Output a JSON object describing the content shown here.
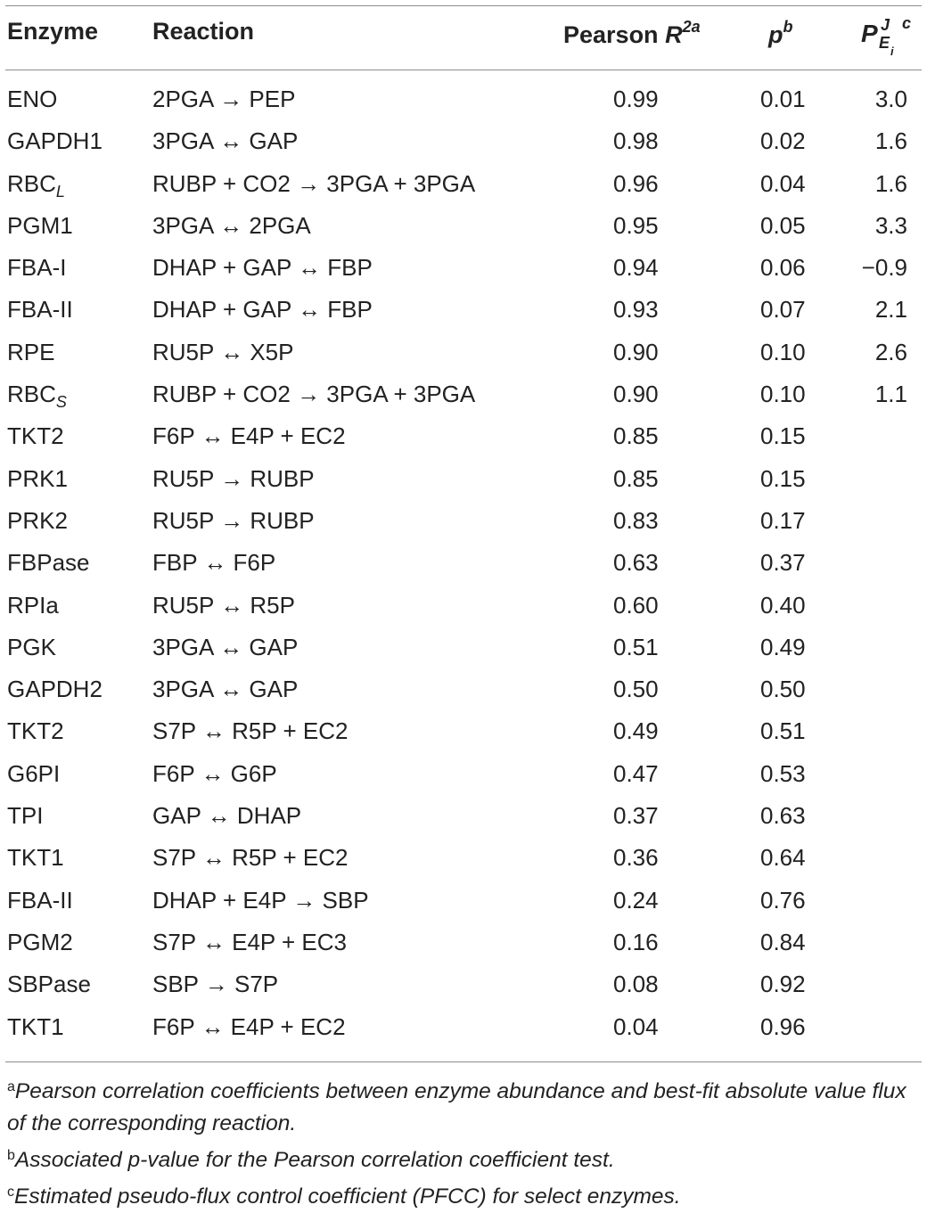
{
  "table": {
    "headers": {
      "enzyme": "Enzyme",
      "reaction": "Reaction",
      "pearson": "Pearson ",
      "pearson_var": "R",
      "pearson_sup": "2a",
      "p": "p",
      "p_sup": "b",
      "pfcc_P": "P",
      "pfcc_J": "J",
      "pfcc_E": "E",
      "pfcc_i": "i",
      "pfcc_c": "c"
    },
    "rows": [
      {
        "enzyme": "ENO",
        "enzyme_sub": "",
        "reaction": "2PGA → PEP",
        "pearson": "0.99",
        "p": "0.01",
        "pfcc": "3.0"
      },
      {
        "enzyme": "GAPDH1",
        "enzyme_sub": "",
        "reaction": "3PGA ↔ GAP",
        "pearson": "0.98",
        "p": "0.02",
        "pfcc": "1.6"
      },
      {
        "enzyme": "RBC",
        "enzyme_sub": "L",
        "reaction": "RUBP + CO2 → 3PGA + 3PGA",
        "pearson": "0.96",
        "p": "0.04",
        "pfcc": "1.6"
      },
      {
        "enzyme": "PGM1",
        "enzyme_sub": "",
        "reaction": "3PGA ↔ 2PGA",
        "pearson": "0.95",
        "p": "0.05",
        "pfcc": "3.3"
      },
      {
        "enzyme": "FBA-I",
        "enzyme_sub": "",
        "reaction": "DHAP + GAP ↔ FBP",
        "pearson": "0.94",
        "p": "0.06",
        "pfcc": "−0.9"
      },
      {
        "enzyme": "FBA-II",
        "enzyme_sub": "",
        "reaction": "DHAP + GAP ↔ FBP",
        "pearson": "0.93",
        "p": "0.07",
        "pfcc": "2.1"
      },
      {
        "enzyme": "RPE",
        "enzyme_sub": "",
        "reaction": "RU5P ↔ X5P",
        "pearson": "0.90",
        "p": "0.10",
        "pfcc": "2.6"
      },
      {
        "enzyme": "RBC",
        "enzyme_sub": "S",
        "reaction": "RUBP + CO2 → 3PGA + 3PGA",
        "pearson": "0.90",
        "p": "0.10",
        "pfcc": "1.1"
      },
      {
        "enzyme": "TKT2",
        "enzyme_sub": "",
        "reaction": "F6P ↔ E4P + EC2",
        "pearson": "0.85",
        "p": "0.15",
        "pfcc": ""
      },
      {
        "enzyme": "PRK1",
        "enzyme_sub": "",
        "reaction": "RU5P → RUBP",
        "pearson": "0.85",
        "p": "0.15",
        "pfcc": ""
      },
      {
        "enzyme": "PRK2",
        "enzyme_sub": "",
        "reaction": "RU5P → RUBP",
        "pearson": "0.83",
        "p": "0.17",
        "pfcc": ""
      },
      {
        "enzyme": "FBPase",
        "enzyme_sub": "",
        "reaction": "FBP ↔ F6P",
        "pearson": "0.63",
        "p": "0.37",
        "pfcc": ""
      },
      {
        "enzyme": "RPIa",
        "enzyme_sub": "",
        "reaction": "RU5P ↔ R5P",
        "pearson": "0.60",
        "p": "0.40",
        "pfcc": ""
      },
      {
        "enzyme": "PGK",
        "enzyme_sub": "",
        "reaction": "3PGA ↔ GAP",
        "pearson": "0.51",
        "p": "0.49",
        "pfcc": ""
      },
      {
        "enzyme": "GAPDH2",
        "enzyme_sub": "",
        "reaction": "3PGA ↔ GAP",
        "pearson": "0.50",
        "p": "0.50",
        "pfcc": ""
      },
      {
        "enzyme": "TKT2",
        "enzyme_sub": "",
        "reaction": "S7P ↔ R5P + EC2",
        "pearson": "0.49",
        "p": "0.51",
        "pfcc": ""
      },
      {
        "enzyme": "G6PI",
        "enzyme_sub": "",
        "reaction": "F6P ↔ G6P",
        "pearson": "0.47",
        "p": "0.53",
        "pfcc": ""
      },
      {
        "enzyme": "TPI",
        "enzyme_sub": "",
        "reaction": "GAP ↔ DHAP",
        "pearson": "0.37",
        "p": "0.63",
        "pfcc": ""
      },
      {
        "enzyme": "TKT1",
        "enzyme_sub": "",
        "reaction": "S7P ↔ R5P + EC2",
        "pearson": "0.36",
        "p": "0.64",
        "pfcc": ""
      },
      {
        "enzyme": "FBA-II",
        "enzyme_sub": "",
        "reaction": "DHAP + E4P → SBP",
        "pearson": "0.24",
        "p": "0.76",
        "pfcc": ""
      },
      {
        "enzyme": "PGM2",
        "enzyme_sub": "",
        "reaction": "S7P ↔ E4P + EC3",
        "pearson": "0.16",
        "p": "0.84",
        "pfcc": ""
      },
      {
        "enzyme": "SBPase",
        "enzyme_sub": "",
        "reaction": "SBP → S7P",
        "pearson": "0.08",
        "p": "0.92",
        "pfcc": ""
      },
      {
        "enzyme": "TKT1",
        "enzyme_sub": "",
        "reaction": "F6P ↔ E4P + EC2",
        "pearson": "0.04",
        "p": "0.96",
        "pfcc": ""
      }
    ]
  },
  "footnotes": [
    {
      "mark": "a",
      "text": "Pearson correlation coefficients between enzyme abundance and best-fit absolute value flux of the corresponding reaction."
    },
    {
      "mark": "b",
      "text": "Associated p-value for the Pearson correlation coefficient test."
    },
    {
      "mark": "c",
      "text": "Estimated pseudo-flux control coefficient (PFCC) for select enzymes."
    }
  ]
}
